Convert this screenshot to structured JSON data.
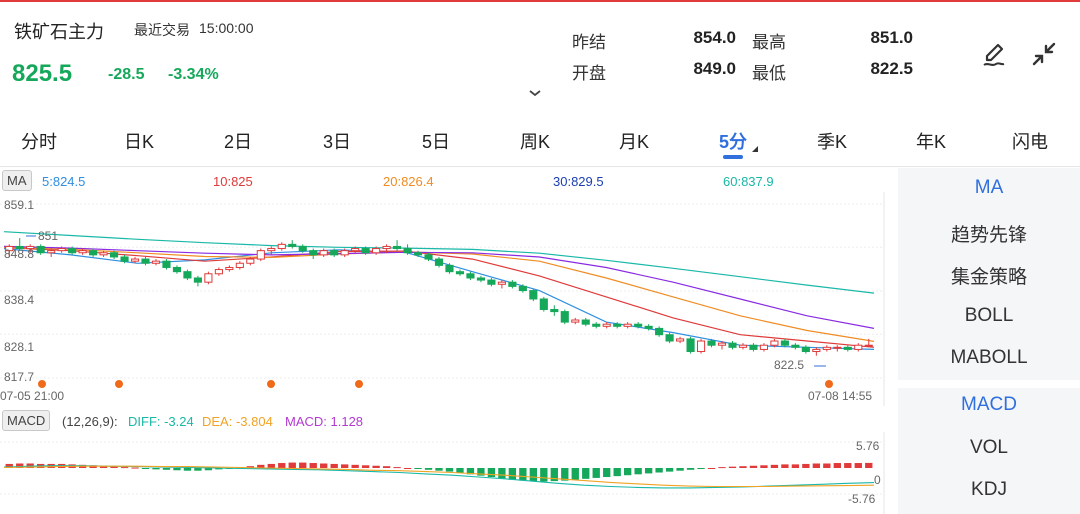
{
  "header": {
    "instrument": "铁矿石主力",
    "last_trade_label": "最近交易",
    "last_trade_time": "15:00:00",
    "price": "825.5",
    "change": "-28.5",
    "change_pct": "-3.34%",
    "stats": [
      {
        "label": "昨结",
        "value": "854.0"
      },
      {
        "label": "最高",
        "value": "851.0"
      },
      {
        "label": "开盘",
        "value": "849.0"
      },
      {
        "label": "最低",
        "value": "822.5"
      }
    ],
    "icons": {
      "expand": "chevron-down-icon",
      "edit": "edit-pen-icon",
      "collapse": "collapse-arrows-icon"
    }
  },
  "tabs": [
    "分时",
    "日K",
    "2日",
    "3日",
    "5日",
    "周K",
    "月K",
    "5分",
    "季K",
    "年K",
    "闪电"
  ],
  "active_tab": "5分",
  "ma_legend": {
    "badge": "MA",
    "items": [
      {
        "label": "5:824.5",
        "color": "#2f8fe0"
      },
      {
        "label": "10:825",
        "color": "#e03a3a"
      },
      {
        "label": "20:826.4",
        "color": "#f08c24"
      },
      {
        "label": "30:829.5",
        "color": "#1b3fb0"
      },
      {
        "label": "60:837.9",
        "color": "#19b8a8"
      }
    ]
  },
  "price_axis": [
    "859.1",
    "848.8",
    "838.4",
    "828.1",
    "817.7"
  ],
  "chart_labels": {
    "high": "851",
    "low": "822.5",
    "start_time": "07-05 21:00",
    "end_time": "07-08 14:55"
  },
  "macd_legend": {
    "badge": "MACD",
    "params": "(12,26,9):",
    "diff": "DIFF: -3.24",
    "dea": "DEA: -3.804",
    "macd": "MACD: 1.128"
  },
  "macd_axis": [
    "5.76",
    "0",
    "-5.76"
  ],
  "side_panel": {
    "items": [
      "MA",
      "趋势先锋",
      "集金策略",
      "BOLL",
      "MABOLL"
    ],
    "items2": [
      "MACD",
      "VOL",
      "KDJ"
    ]
  },
  "colors": {
    "up": "#e03a3a",
    "down": "#16a85a",
    "accent": "#2f6fde"
  },
  "chart_data": {
    "type": "candlestick",
    "interval": "5分",
    "ylim": [
      817.7,
      859.1
    ],
    "candles": [
      [
        848.0,
        849.5,
        846.5,
        849.0
      ],
      [
        849.0,
        851.0,
        848.0,
        848.5
      ],
      [
        848.5,
        849.5,
        847.5,
        849.0
      ],
      [
        849.0,
        849.5,
        847.0,
        847.5
      ],
      [
        847.5,
        848.5,
        846.5,
        848.0
      ],
      [
        848.0,
        849.0,
        847.5,
        848.5
      ],
      [
        848.5,
        849.0,
        847.0,
        847.5
      ],
      [
        847.5,
        848.5,
        847.0,
        848.0
      ],
      [
        848.0,
        848.5,
        846.5,
        847.0
      ],
      [
        847.0,
        848.0,
        846.5,
        847.5
      ],
      [
        847.5,
        848.0,
        846.0,
        846.5
      ],
      [
        846.5,
        847.0,
        845.0,
        845.5
      ],
      [
        845.5,
        846.5,
        845.0,
        846.0
      ],
      [
        846.0,
        846.5,
        844.5,
        845.0
      ],
      [
        845.0,
        846.0,
        844.5,
        845.5
      ],
      [
        845.5,
        846.0,
        843.5,
        844.0
      ],
      [
        844.0,
        844.5,
        842.5,
        843.0
      ],
      [
        843.0,
        843.5,
        841.0,
        841.5
      ],
      [
        841.5,
        842.0,
        839.5,
        840.5
      ],
      [
        840.5,
        843.0,
        840.0,
        842.5
      ],
      [
        842.5,
        844.0,
        842.0,
        843.5
      ],
      [
        843.5,
        844.5,
        843.0,
        844.0
      ],
      [
        844.0,
        845.5,
        843.5,
        845.0
      ],
      [
        845.0,
        846.5,
        844.5,
        846.0
      ],
      [
        846.0,
        848.5,
        845.5,
        848.0
      ],
      [
        848.0,
        849.0,
        847.0,
        848.5
      ],
      [
        848.5,
        850.0,
        848.0,
        849.5
      ],
      [
        849.5,
        850.5,
        848.5,
        849.0
      ],
      [
        849.0,
        849.5,
        847.5,
        848.0
      ],
      [
        848.0,
        848.5,
        846.0,
        847.0
      ],
      [
        847.0,
        848.5,
        846.5,
        848.0
      ],
      [
        848.0,
        848.5,
        846.5,
        847.0
      ],
      [
        847.0,
        848.5,
        846.5,
        848.0
      ],
      [
        848.0,
        849.0,
        847.5,
        848.5
      ],
      [
        848.5,
        849.0,
        847.0,
        847.5
      ],
      [
        847.5,
        849.0,
        847.0,
        848.5
      ],
      [
        848.5,
        849.5,
        847.5,
        849.0
      ],
      [
        849.0,
        850.5,
        848.0,
        848.5
      ],
      [
        848.5,
        849.5,
        847.0,
        847.5
      ],
      [
        847.5,
        848.0,
        846.5,
        847.0
      ],
      [
        847.0,
        847.5,
        845.5,
        846.0
      ],
      [
        846.0,
        846.5,
        844.0,
        844.5
      ],
      [
        844.5,
        845.0,
        842.5,
        843.0
      ],
      [
        843.0,
        843.5,
        842.0,
        842.5
      ],
      [
        842.5,
        843.0,
        841.0,
        841.5
      ],
      [
        841.5,
        842.0,
        840.5,
        841.0
      ],
      [
        841.0,
        841.5,
        839.5,
        840.0
      ],
      [
        840.0,
        841.0,
        839.0,
        840.5
      ],
      [
        840.5,
        841.0,
        839.0,
        839.5
      ],
      [
        839.5,
        840.0,
        838.0,
        838.5
      ],
      [
        838.5,
        839.0,
        836.0,
        836.5
      ],
      [
        836.5,
        837.0,
        833.5,
        834.0
      ],
      [
        834.0,
        835.0,
        832.5,
        833.5
      ],
      [
        833.5,
        834.0,
        830.5,
        831.0
      ],
      [
        831.0,
        832.0,
        830.5,
        831.5
      ],
      [
        831.5,
        832.0,
        830.0,
        830.5
      ],
      [
        830.5,
        831.0,
        829.5,
        830.0
      ],
      [
        830.0,
        831.0,
        829.5,
        830.5
      ],
      [
        830.5,
        831.0,
        829.5,
        830.0
      ],
      [
        830.0,
        831.0,
        829.5,
        830.5
      ],
      [
        830.5,
        831.0,
        829.5,
        830.0
      ],
      [
        830.0,
        830.5,
        829.0,
        829.5
      ],
      [
        829.5,
        830.0,
        827.5,
        828.0
      ],
      [
        828.0,
        828.5,
        826.0,
        826.5
      ],
      [
        826.5,
        827.5,
        826.0,
        827.0
      ],
      [
        827.0,
        827.5,
        823.5,
        824.0
      ],
      [
        824.0,
        827.0,
        823.5,
        826.5
      ],
      [
        826.5,
        827.0,
        825.0,
        825.5
      ],
      [
        825.5,
        826.5,
        824.5,
        826.0
      ],
      [
        826.0,
        826.5,
        824.5,
        825.0
      ],
      [
        825.0,
        826.0,
        824.5,
        825.5
      ],
      [
        825.5,
        826.0,
        824.0,
        824.5
      ],
      [
        824.5,
        826.0,
        824.0,
        825.5
      ],
      [
        825.5,
        827.0,
        825.0,
        826.5
      ],
      [
        826.5,
        827.0,
        825.0,
        825.5
      ],
      [
        825.5,
        826.0,
        824.5,
        825.0
      ],
      [
        825.0,
        825.5,
        823.5,
        824.0
      ],
      [
        824.0,
        825.0,
        823.0,
        824.5
      ],
      [
        824.5,
        825.5,
        824.0,
        825.0
      ],
      [
        825.0,
        825.5,
        824.0,
        825.0
      ],
      [
        825.0,
        825.5,
        824.0,
        824.5
      ],
      [
        824.5,
        826.0,
        824.0,
        825.5
      ],
      [
        825.5,
        827.0,
        825.0,
        825.5
      ]
    ],
    "ma": {
      "ma5": [
        848.5,
        847.0,
        845.0,
        845.8,
        847.5,
        848.2,
        847.6,
        843.0,
        838.5,
        831.0,
        828.5,
        825.5,
        825.0,
        824.5
      ],
      "ma10": [
        848.7,
        848.0,
        846.8,
        845.5,
        846.5,
        847.8,
        847.9,
        846.0,
        842.0,
        837.0,
        832.0,
        828.0,
        826.5,
        825.0
      ],
      "ma20": [
        848.8,
        848.3,
        847.5,
        846.6,
        846.4,
        847.2,
        847.7,
        847.2,
        845.5,
        841.5,
        837.0,
        832.5,
        829.0,
        826.4
      ],
      "ma30": [
        849.0,
        848.6,
        848.0,
        847.4,
        847.0,
        847.3,
        847.6,
        847.5,
        846.5,
        844.0,
        840.5,
        836.5,
        832.5,
        829.5
      ],
      "ma60": [
        852.5,
        851.6,
        850.7,
        849.9,
        849.2,
        848.8,
        848.6,
        848.3,
        847.4,
        845.7,
        843.8,
        841.8,
        839.8,
        837.9
      ]
    },
    "macd": {
      "ylim": [
        -5.76,
        5.76
      ],
      "hist": [
        0.9,
        1.0,
        1.0,
        0.9,
        0.9,
        0.9,
        0.8,
        0.7,
        0.6,
        0.5,
        0.4,
        0.2,
        0.1,
        -0.1,
        -0.3,
        -0.4,
        -0.5,
        -0.6,
        -0.6,
        -0.5,
        -0.3,
        -0.1,
        0.2,
        0.4,
        0.7,
        0.9,
        1.1,
        1.2,
        1.2,
        1.1,
        1.0,
        0.9,
        0.8,
        0.7,
        0.6,
        0.5,
        0.4,
        0.2,
        0.0,
        -0.2,
        -0.4,
        -0.6,
        -0.8,
        -1.1,
        -1.4,
        -1.7,
        -2.0,
        -2.3,
        -2.6,
        -2.8,
        -2.9,
        -3.0,
        -2.9,
        -2.8,
        -2.6,
        -2.4,
        -2.2,
        -2.0,
        -1.8,
        -1.6,
        -1.4,
        -1.2,
        -1.0,
        -0.8,
        -0.6,
        -0.4,
        -0.2,
        0.0,
        0.2,
        0.3,
        0.4,
        0.5,
        0.6,
        0.7,
        0.8,
        0.8,
        0.9,
        1.0,
        1.0,
        1.1,
        1.1,
        1.1,
        1.13
      ],
      "diff": [
        0.2,
        0.4,
        0.5,
        0.5,
        0.4,
        0.3,
        0.2,
        0.1,
        0.0,
        -0.1,
        -0.2,
        -0.3,
        -0.4,
        -0.6,
        -0.8,
        -1.0,
        -1.3,
        -1.6,
        -2.0,
        -2.4,
        -2.9,
        -3.4,
        -3.8,
        -4.1,
        -4.3,
        -4.4,
        -4.4,
        -4.3,
        -4.2,
        -4.0,
        -3.8,
        -3.6,
        -3.4,
        -3.24
      ],
      "dea": [
        0.1,
        0.2,
        0.3,
        0.4,
        0.4,
        0.4,
        0.3,
        0.3,
        0.2,
        0.1,
        0.0,
        -0.1,
        -0.2,
        -0.3,
        -0.5,
        -0.6,
        -0.8,
        -1.0,
        -1.3,
        -1.6,
        -2.0,
        -2.4,
        -2.8,
        -3.2,
        -3.5,
        -3.8,
        -4.0,
        -4.1,
        -4.1,
        -4.1,
        -4.0,
        -3.95,
        -3.9,
        -3.804
      ]
    }
  }
}
